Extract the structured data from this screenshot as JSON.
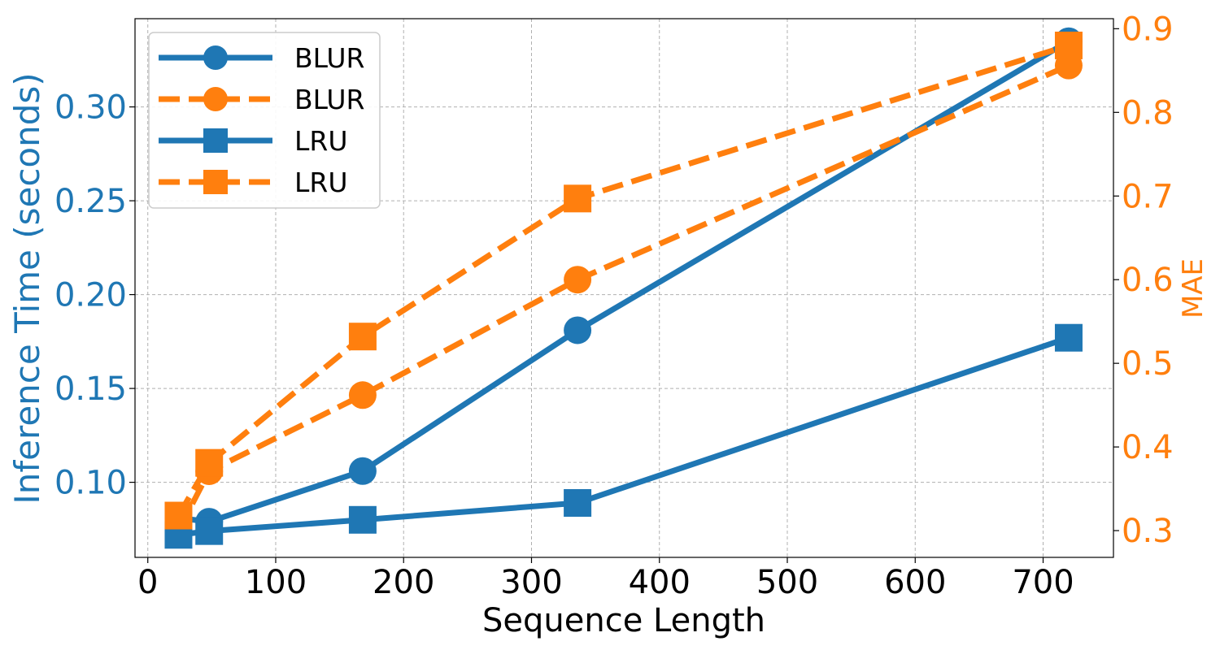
{
  "chart_data": {
    "type": "line",
    "title": "",
    "xlabel": "Sequence Length",
    "ylabel_left": "Inference Time (seconds)",
    "ylabel_right": "MAE",
    "xlim": [
      -10,
      755
    ],
    "ylim_left": [
      0.06,
      0.347
    ],
    "ylim_right": [
      0.268,
      0.912
    ],
    "xticks": [
      0,
      100,
      200,
      300,
      400,
      500,
      600,
      700
    ],
    "yticks_left": [
      0.1,
      0.15,
      0.2,
      0.25,
      0.3
    ],
    "yticks_right": [
      0.3,
      0.4,
      0.5,
      0.6,
      0.7,
      0.8,
      0.9
    ],
    "grid": true,
    "legend_position": "top-left",
    "colors": {
      "time": "#1f77b4",
      "mae": "#ff7f0e"
    },
    "series": [
      {
        "name": "BLUR",
        "axis": "left",
        "metric": "time",
        "style": "solid",
        "marker": "circle",
        "x": [
          24,
          48,
          168,
          336,
          720
        ],
        "y": [
          0.081,
          0.079,
          0.106,
          0.181,
          0.335
        ]
      },
      {
        "name": "BLUR",
        "axis": "right",
        "metric": "mae",
        "style": "dashed",
        "marker": "circle",
        "x": [
          24,
          48,
          168,
          336,
          720
        ],
        "y": [
          0.3,
          0.371,
          0.462,
          0.6,
          0.856
        ]
      },
      {
        "name": "LRU",
        "axis": "left",
        "metric": "time",
        "style": "solid",
        "marker": "square",
        "x": [
          24,
          48,
          168,
          336,
          720
        ],
        "y": [
          0.072,
          0.074,
          0.08,
          0.089,
          0.177
        ]
      },
      {
        "name": "LRU",
        "axis": "right",
        "metric": "mae",
        "style": "dashed",
        "marker": "square",
        "x": [
          24,
          48,
          168,
          336,
          720
        ],
        "y": [
          0.318,
          0.381,
          0.532,
          0.697,
          0.88
        ]
      }
    ]
  }
}
